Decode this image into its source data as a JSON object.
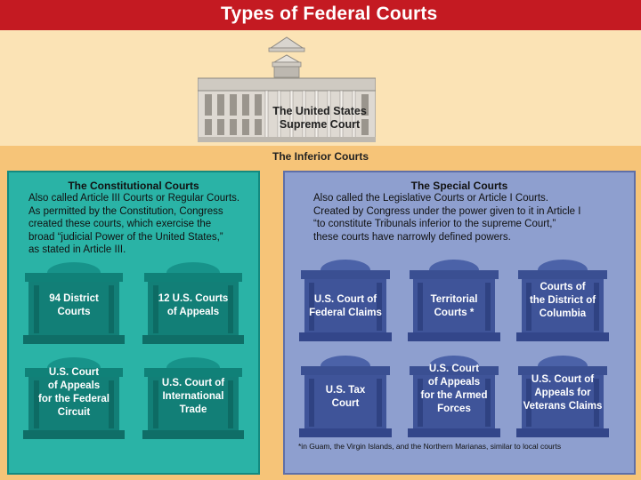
{
  "header": {
    "title": "Types of Federal Courts"
  },
  "supreme_court": {
    "label_line1": "The United States",
    "label_line2": "Supreme Court"
  },
  "inferior": {
    "title": "The Inferior Courts"
  },
  "constitutional": {
    "title": "The Constitutional Courts",
    "description": [
      "Also called Article III Courts or Regular Courts.",
      "As permitted by the Constitution, Congress",
      "created these courts, which exercise the",
      "broad “judicial Power of the United States,”",
      "as stated in Article III."
    ],
    "courts": [
      {
        "lines": [
          "94 District",
          "Courts"
        ]
      },
      {
        "lines": [
          "12 U.S. Courts",
          "of Appeals"
        ]
      },
      {
        "lines": [
          "U.S. Court",
          "of Appeals",
          "for the Federal",
          "Circuit"
        ]
      },
      {
        "lines": [
          "U.S. Court of",
          "International",
          "Trade"
        ]
      }
    ]
  },
  "special": {
    "title": "The Special Courts",
    "description": [
      "Also called the Legislative Courts or Article I Courts.",
      "Created by Congress under the power given to it in Article I",
      "“to constitute Tribunals inferior to the supreme Court,”",
      "these courts have narrowly defined powers."
    ],
    "courts": [
      {
        "lines": [
          "U.S. Court of",
          "Federal Claims"
        ]
      },
      {
        "lines": [
          "Territorial",
          "Courts *"
        ]
      },
      {
        "lines": [
          "Courts of",
          "the District of",
          "Columbia"
        ]
      },
      {
        "lines": [
          "U.S. Tax",
          "Court"
        ]
      },
      {
        "lines": [
          "U.S. Court",
          "of Appeals",
          "for the Armed",
          "Forces"
        ]
      },
      {
        "lines": [
          "U.S. Court of",
          "Appeals for",
          "Veterans Claims"
        ]
      }
    ],
    "footnote": "*in Guam, the Virgin Islands, and the Northern Marianas, similar to local courts"
  },
  "colors": {
    "header_red": "#c41a22",
    "constitutional_panel": "#2ab3a6",
    "constitutional_building": "#127f77",
    "special_panel": "#8e9fcf",
    "special_building": "#3f5499"
  }
}
